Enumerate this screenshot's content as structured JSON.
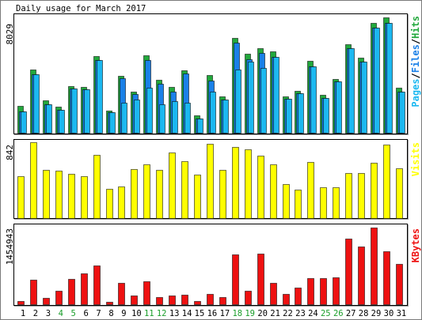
{
  "title": "Daily usage for March 2017",
  "legend_separator": "/",
  "colors": {
    "weekday_label": "#000000",
    "weekend_label": "#1A9E2A"
  },
  "weekend_days": [
    4,
    5,
    11,
    12,
    18,
    19,
    25,
    26
  ],
  "chart_data": [
    {
      "type": "bar",
      "categories": [
        1,
        2,
        3,
        4,
        5,
        6,
        7,
        8,
        9,
        10,
        11,
        12,
        13,
        14,
        15,
        16,
        17,
        18,
        19,
        20,
        21,
        22,
        23,
        24,
        25,
        26,
        27,
        28,
        29,
        30,
        31
      ],
      "ylim": [
        0,
        8029
      ],
      "ymax_label": "8029",
      "series": [
        {
          "name": "Hits",
          "color": "#22A83C",
          "values": [
            1925,
            4450,
            2310,
            1870,
            3300,
            3245,
            5335,
            1595,
            3960,
            2915,
            5390,
            3740,
            3245,
            4345,
            1265,
            4015,
            2585,
            6600,
            5500,
            5885,
            5665,
            2585,
            2970,
            5005,
            2695,
            3795,
            6160,
            5225,
            7645,
            8029,
            3190
          ]
        },
        {
          "name": "Files",
          "color": "#1A80E8",
          "values": [
            1540,
            4070,
            2035,
            1650,
            3135,
            3080,
            5060,
            1485,
            3850,
            2750,
            5060,
            3465,
            2915,
            4125,
            1045,
            3685,
            2365,
            6270,
            5115,
            5555,
            5280,
            2420,
            2805,
            4620,
            2475,
            3630,
            5885,
            4950,
            7315,
            7645,
            2915
          ]
        },
        {
          "name": "Pages",
          "color": "#1CB8F0",
          "values": [
            1540,
            4070,
            2035,
            1650,
            3135,
            3080,
            5060,
            1485,
            2145,
            2365,
            3190,
            2035,
            2255,
            2145,
            1045,
            2915,
            2365,
            4400,
            4950,
            4510,
            5280,
            2420,
            2805,
            4620,
            2475,
            3630,
            5885,
            4950,
            7315,
            7645,
            2915
          ]
        }
      ]
    },
    {
      "type": "bar",
      "categories": [
        1,
        2,
        3,
        4,
        5,
        6,
        7,
        8,
        9,
        10,
        11,
        12,
        13,
        14,
        15,
        16,
        17,
        18,
        19,
        20,
        21,
        22,
        23,
        24,
        25,
        26,
        27,
        28,
        29,
        30,
        31
      ],
      "ylim": [
        0,
        842
      ],
      "ymax_label": "842",
      "series": [
        {
          "name": "Visits",
          "color": "#FFFF00",
          "values": [
            470,
            842,
            541,
            532,
            496,
            470,
            700,
            328,
            355,
            549,
            603,
            541,
            727,
            638,
            488,
            824,
            541,
            789,
            762,
            691,
            603,
            381,
            319,
            629,
            346,
            346,
            505,
            505,
            612,
            815,
            558
          ]
        }
      ]
    },
    {
      "type": "bar",
      "categories": [
        1,
        2,
        3,
        4,
        5,
        6,
        7,
        8,
        9,
        10,
        11,
        12,
        13,
        14,
        15,
        16,
        17,
        18,
        19,
        20,
        21,
        22,
        23,
        24,
        25,
        26,
        27,
        28,
        29,
        30,
        31
      ],
      "ylim": [
        0,
        1454943
      ],
      "ymax_label": "1454943",
      "series": [
        {
          "name": "KBytes",
          "color": "#EE1111",
          "values": [
            76000,
            470000,
            136000,
            273000,
            485000,
            591000,
            743000,
            61000,
            409000,
            182000,
            440000,
            152000,
            182000,
            197000,
            76000,
            212000,
            152000,
            955000,
            273000,
            970000,
            409000,
            212000,
            333000,
            500000,
            500000,
            515000,
            1243000,
            1106000,
            1454943,
            1015000,
            773000
          ]
        }
      ]
    }
  ]
}
